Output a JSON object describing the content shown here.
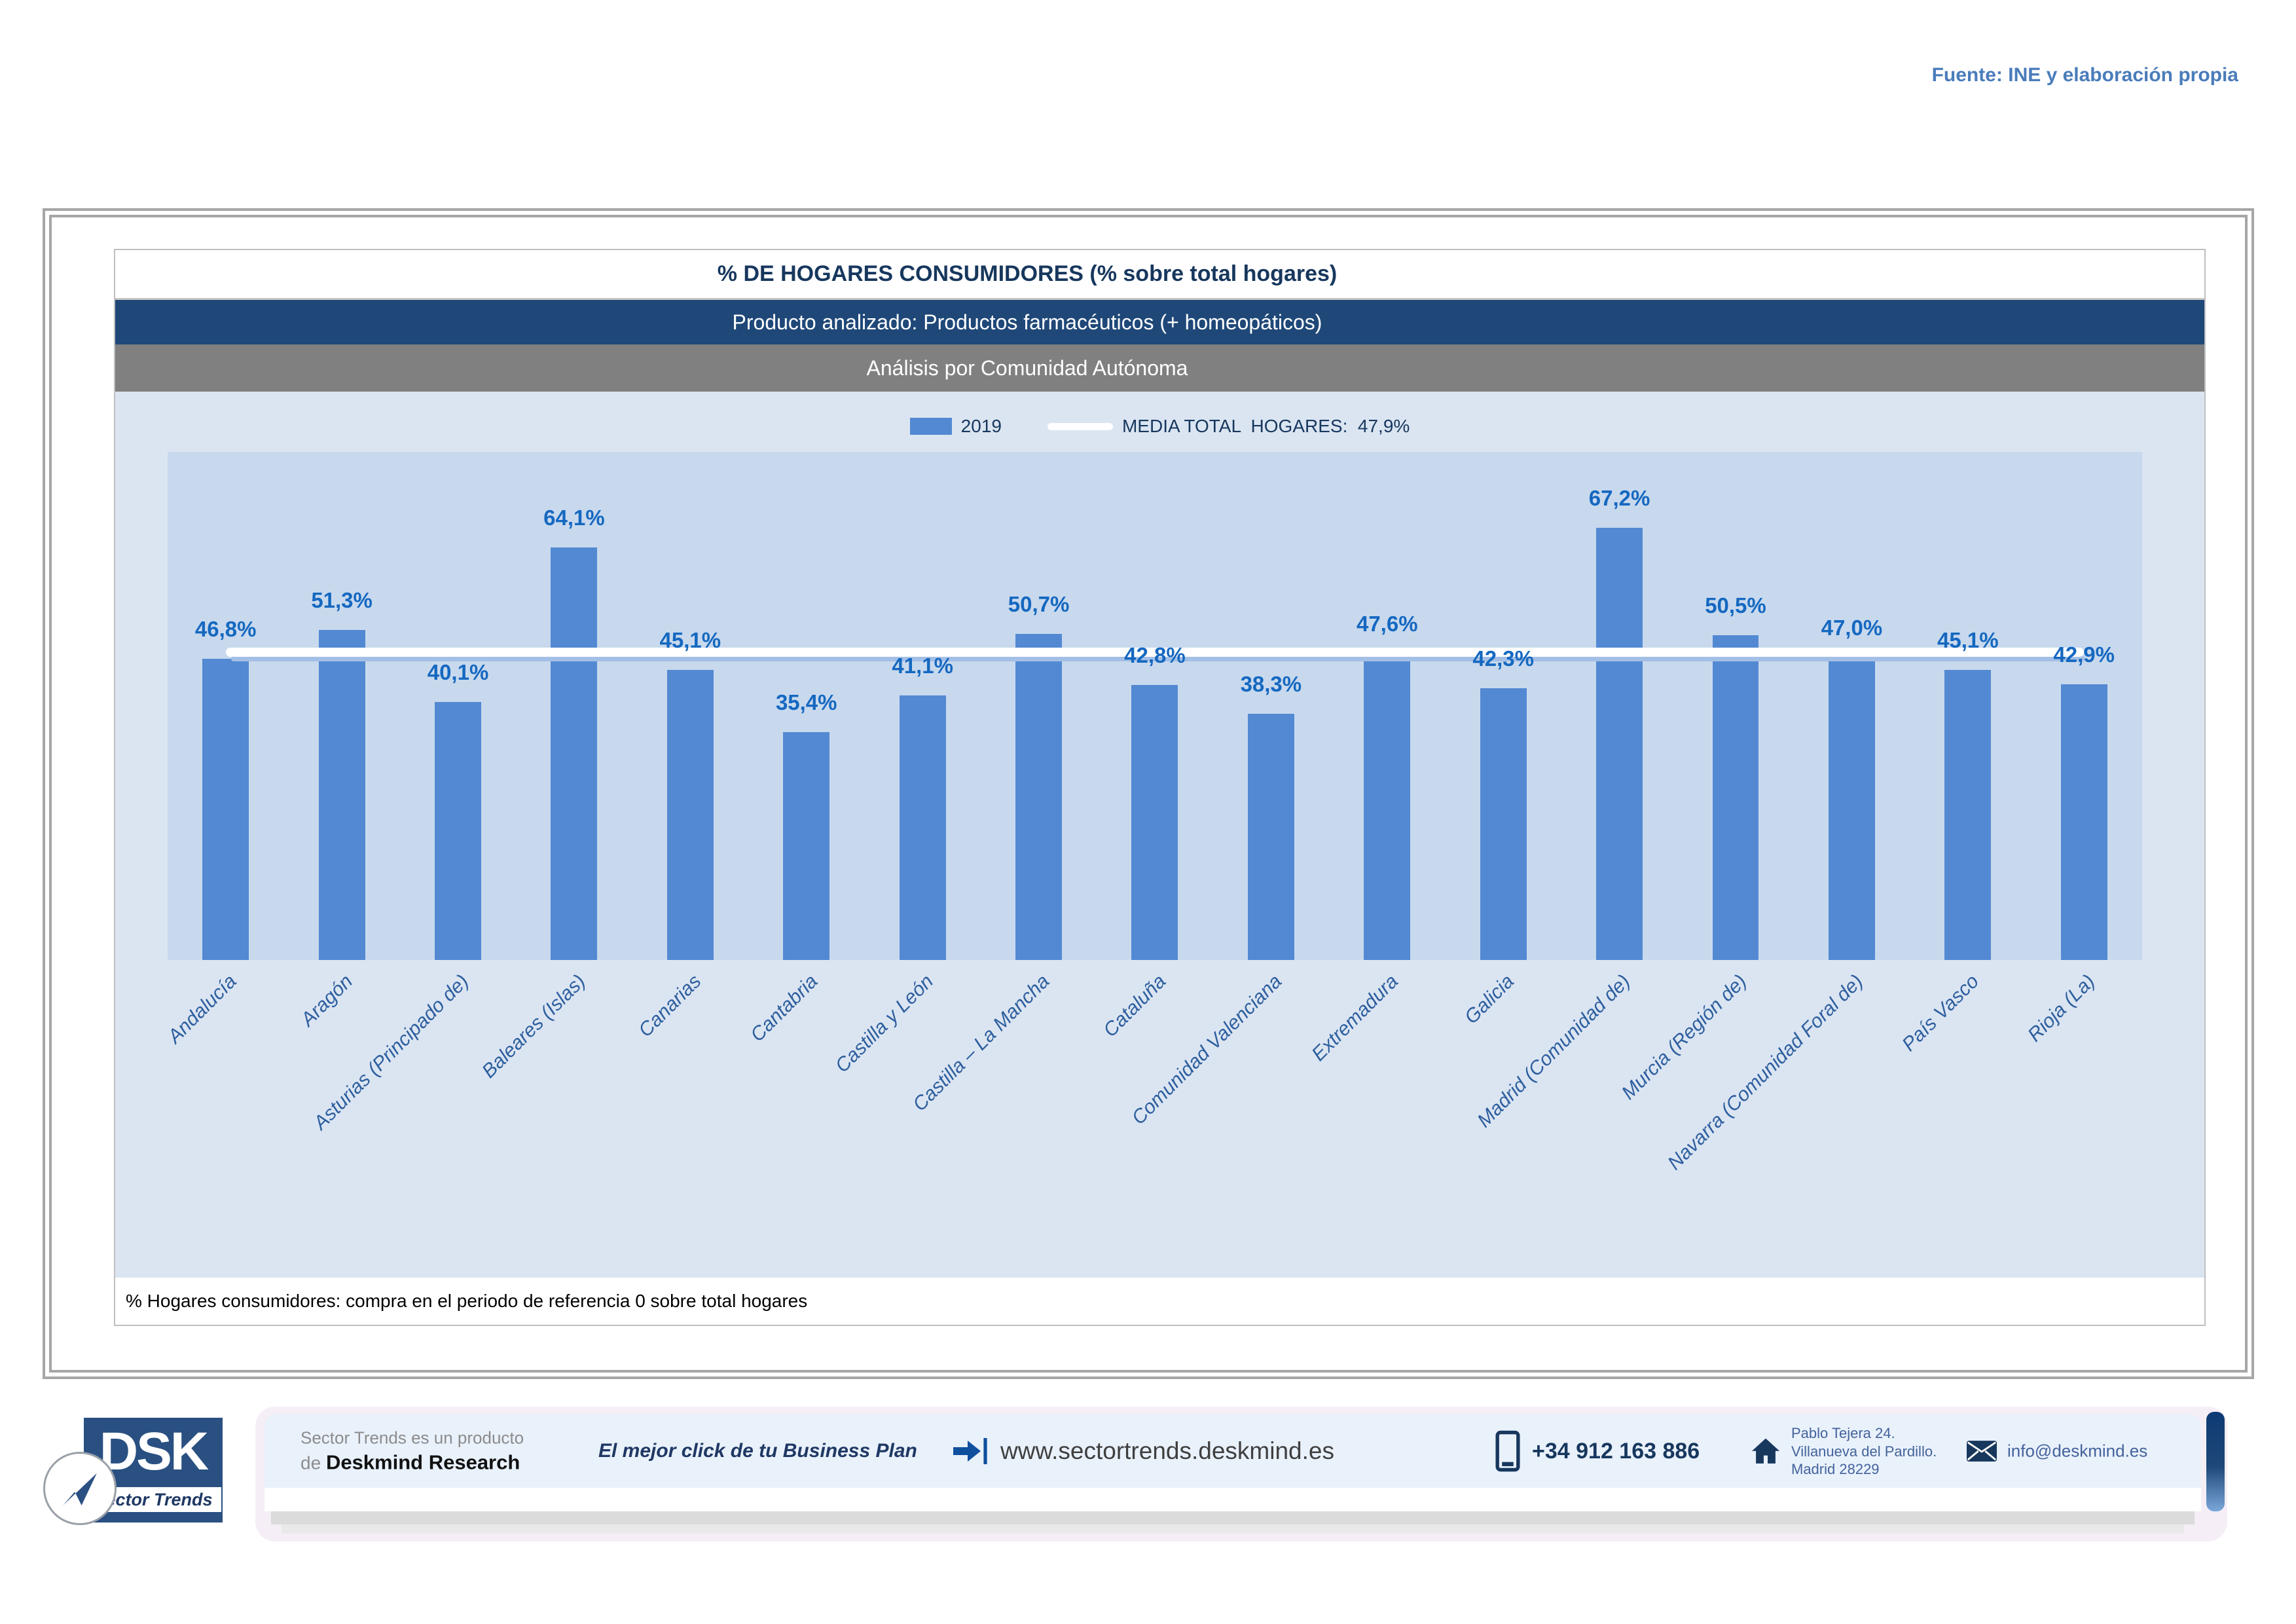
{
  "source_note": "Fuente: INE y elaboración propia",
  "header": {
    "title": "% DE HOGARES CONSUMIDORES (% sobre total hogares)",
    "subtitle_product": "Producto analizado: Productos farmacéuticos (+ homeopáticos)",
    "subtitle_analysis": "Análisis por Comunidad Autónoma"
  },
  "legend": {
    "series_label": "2019",
    "media_label": "MEDIA TOTAL  HOGARES:  47,9%"
  },
  "chart_data": {
    "type": "bar",
    "title": "% DE HOGARES CONSUMIDORES (% sobre total hogares)",
    "categories": [
      "Andalucía",
      "Aragón",
      "Asturias (Principado de)",
      "Baleares (Islas)",
      "Canarias",
      "Cantabria",
      "Castilla y León",
      "Castilla – La Mancha",
      "Cataluña",
      "Comunidad Valenciana",
      "Extremadura",
      "Galicia",
      "Madrid (Comunidad de)",
      "Murcia (Región de)",
      "Navarra (Comunidad Foral de)",
      "País Vasco",
      "Rioja (La)"
    ],
    "series": [
      {
        "name": "2019",
        "values": [
          46.8,
          51.3,
          40.1,
          64.1,
          45.1,
          35.4,
          41.1,
          50.7,
          42.8,
          38.3,
          47.6,
          42.3,
          67.2,
          50.5,
          47.0,
          45.1,
          42.9
        ]
      }
    ],
    "value_labels": [
      "46,8%",
      "51,3%",
      "40,1%",
      "64,1%",
      "45,1%",
      "35,4%",
      "41,1%",
      "50,7%",
      "42,8%",
      "38,3%",
      "47,6%",
      "42,3%",
      "67,2%",
      "50,5%",
      "47,0%",
      "45,1%",
      "42,9%"
    ],
    "reference_line": {
      "label": "MEDIA TOTAL HOGARES",
      "value": 47.9,
      "display": "47,9%"
    },
    "xlabel": "",
    "ylabel": "",
    "ylim": [
      0,
      79
    ],
    "grid": false,
    "legend_position": "top"
  },
  "footnote": "% Hogares consumidores: compra en el periodo de referencia 0 sobre total hogares",
  "footer": {
    "logo_text": "DSK",
    "logo_subtext": "Sector Trends",
    "product_line1": "Sector Trends es un producto",
    "product_line2_prefix": "de ",
    "product_line2_brand": "Deskmind Research",
    "tagline": "El mejor click de tu Business Plan",
    "website": "www.sectortrends.deskmind.es",
    "phone": "+34 912 163 886",
    "address_line1": "Pablo Tejera 24.",
    "address_line2": "Villanueva del Pardillo.",
    "address_line3": "Madrid 28229",
    "email": "info@deskmind.es"
  },
  "colors": {
    "accent_blue": "#4a7cba",
    "header_bar_blue": "#1f4878",
    "header_bar_gray": "#808080",
    "chart_area_bg": "#dbe5f2",
    "plot_bg": "#c8d9ee",
    "bar": "#5389d2",
    "value_label": "#1568c0",
    "category_label": "#2e5f9e",
    "navy_text": "#17375d",
    "media_line": "#ffffff"
  }
}
